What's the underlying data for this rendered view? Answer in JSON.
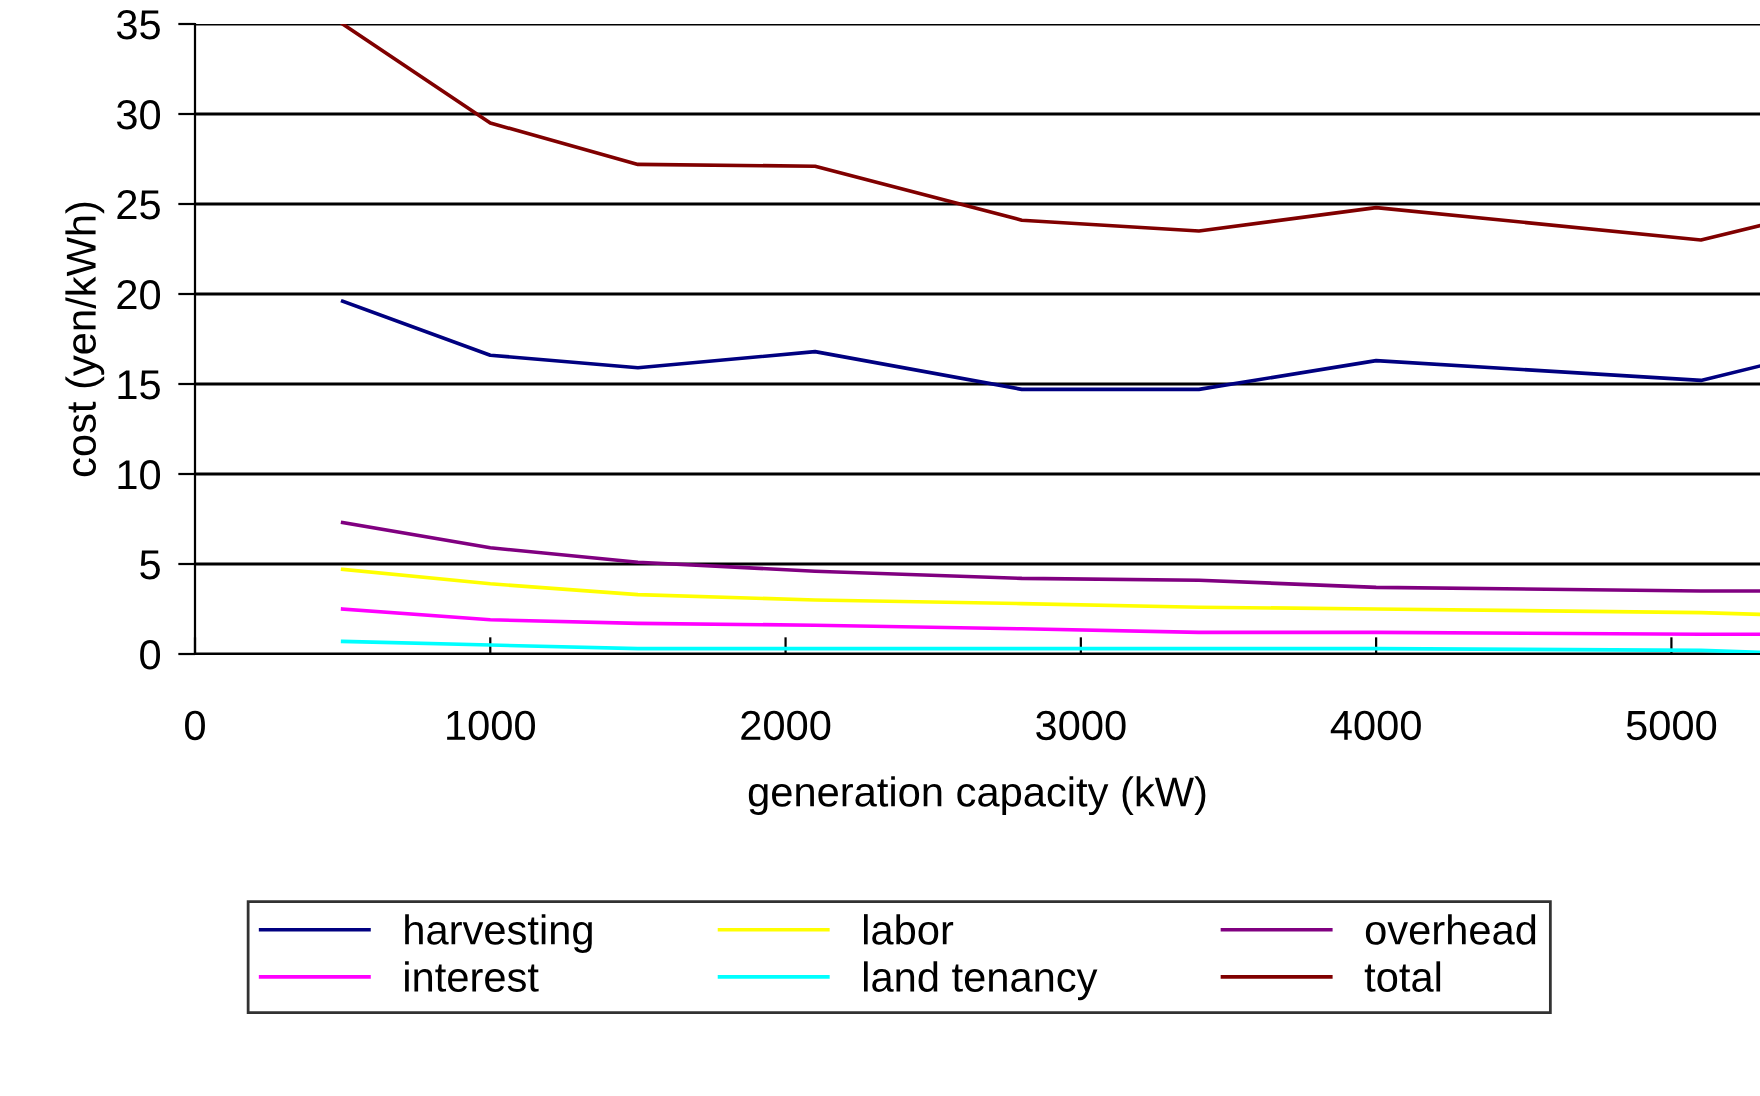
{
  "chart_data": {
    "type": "line",
    "xlabel": "generation capacity (kW)",
    "ylabel": "cost (yen/kWh)",
    "x": [
      500,
      1000,
      1500,
      2100,
      2800,
      3400,
      4000,
      5100,
      5300
    ],
    "series": [
      {
        "name": "harvesting",
        "color": "#000080",
        "values": [
          19.6,
          16.6,
          15.9,
          16.8,
          14.7,
          14.7,
          16.3,
          15.2,
          16.0
        ]
      },
      {
        "name": "interest",
        "color": "#ff00ff",
        "values": [
          2.5,
          1.9,
          1.7,
          1.6,
          1.4,
          1.2,
          1.2,
          1.1,
          1.1
        ]
      },
      {
        "name": "labor",
        "color": "#ffff00",
        "values": [
          4.7,
          3.9,
          3.3,
          3.0,
          2.8,
          2.6,
          2.5,
          2.3,
          2.2
        ]
      },
      {
        "name": "land tenancy",
        "color": "#00ffff",
        "values": [
          0.7,
          0.5,
          0.3,
          0.3,
          0.3,
          0.3,
          0.3,
          0.2,
          0.1
        ]
      },
      {
        "name": "overhead",
        "color": "#800080",
        "values": [
          7.3,
          5.9,
          5.1,
          4.6,
          4.2,
          4.1,
          3.7,
          3.5,
          3.5
        ]
      },
      {
        "name": "total",
        "color": "#800000",
        "values": [
          35.0,
          29.5,
          27.2,
          27.1,
          24.1,
          23.5,
          24.8,
          23.0,
          23.8
        ]
      }
    ],
    "xlim": [
      0,
      5300
    ],
    "xticks": [
      0,
      1000,
      2000,
      3000,
      4000,
      5000
    ],
    "ylim": [
      0,
      35
    ],
    "yticks": [
      0,
      5,
      10,
      15,
      20,
      25,
      30,
      35
    ],
    "grid": "y",
    "legend": "bottom",
    "marker": "none",
    "line_style": "solid"
  }
}
